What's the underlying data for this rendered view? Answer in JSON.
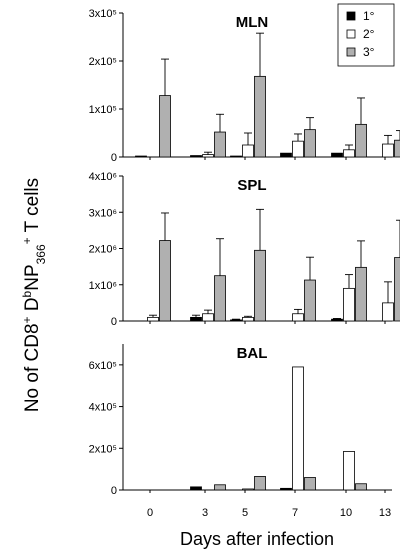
{
  "figure": {
    "ylabel": "No of CD8+ DbNP366+ T cells",
    "ylabel_parts": {
      "prefix": "No of CD8",
      "sup1": "+",
      "mid": " D",
      "sup2": "b",
      "mid2": "NP",
      "sub": "366",
      "sup3": "+",
      "suffix": " T cells"
    },
    "xlabel": "Days after infection"
  },
  "chart_data": [
    {
      "type": "bar",
      "title": "MLN",
      "categories": [
        "0",
        "3",
        "5",
        "7",
        "10",
        "13"
      ],
      "ylim": [
        0,
        300000
      ],
      "yticks": [
        0,
        100000,
        200000,
        300000
      ],
      "ytick_labels": [
        "0",
        "1x10⁵",
        "2x10⁵",
        "3x10⁵"
      ],
      "series": [
        {
          "name": "1°",
          "color": "#000000",
          "values": [
            2000,
            3000,
            2000,
            8000,
            8000,
            0
          ],
          "errors": [
            0,
            0,
            0,
            0,
            0,
            0
          ]
        },
        {
          "name": "2°",
          "color": "#ffffff",
          "values": [
            0,
            5000,
            25000,
            33000,
            15000,
            27000
          ],
          "errors": [
            0,
            5000,
            25000,
            15000,
            10000,
            18000
          ]
        },
        {
          "name": "3°",
          "color": "#b0b0b0",
          "values": [
            128000,
            52000,
            168000,
            57000,
            68000,
            35000
          ],
          "errors": [
            76000,
            37000,
            90000,
            25000,
            55000,
            20000
          ]
        }
      ],
      "legend": {
        "position": "top-right",
        "labels": [
          "1°",
          "2°",
          "3°"
        ]
      }
    },
    {
      "type": "bar",
      "title": "SPL",
      "categories": [
        "0",
        "3",
        "5",
        "7",
        "10",
        "13"
      ],
      "ylim": [
        0,
        4000000
      ],
      "yticks": [
        0,
        1000000,
        2000000,
        3000000,
        4000000
      ],
      "ytick_labels": [
        "0",
        "1x10⁶",
        "2x10⁶",
        "3x10⁶",
        "4x10⁶"
      ],
      "series": [
        {
          "name": "1°",
          "color": "#000000",
          "values": [
            0,
            100000,
            30000,
            0,
            50000,
            0
          ],
          "errors": [
            0,
            60000,
            20000,
            0,
            20000,
            0
          ]
        },
        {
          "name": "2°",
          "color": "#ffffff",
          "values": [
            100000,
            200000,
            100000,
            200000,
            900000,
            500000
          ],
          "errors": [
            60000,
            100000,
            30000,
            120000,
            380000,
            580000
          ]
        },
        {
          "name": "3°",
          "color": "#b0b0b0",
          "values": [
            2220000,
            1250000,
            1950000,
            1130000,
            1480000,
            1750000
          ],
          "errors": [
            760000,
            1020000,
            1130000,
            630000,
            730000,
            1030000
          ]
        }
      ]
    },
    {
      "type": "bar",
      "title": "BAL",
      "categories": [
        "0",
        "3",
        "5",
        "7",
        "10",
        "13"
      ],
      "ylim": [
        0,
        700000
      ],
      "yticks": [
        0,
        200000,
        400000,
        600000
      ],
      "ytick_labels": [
        "0",
        "2x10⁵",
        "4x10⁵",
        "6x10⁵"
      ],
      "series": [
        {
          "name": "1°",
          "color": "#000000",
          "values": [
            0,
            15000,
            0,
            8000,
            0,
            0
          ],
          "errors": [
            0,
            0,
            0,
            0,
            0,
            0
          ]
        },
        {
          "name": "2°",
          "color": "#ffffff",
          "values": [
            0,
            0,
            5000,
            590000,
            185000,
            0
          ],
          "errors": [
            0,
            0,
            0,
            0,
            0,
            0
          ]
        },
        {
          "name": "3°",
          "color": "#b0b0b0",
          "values": [
            0,
            25000,
            65000,
            60000,
            30000,
            0
          ],
          "errors": [
            0,
            0,
            0,
            0,
            0,
            0
          ]
        }
      ]
    }
  ]
}
